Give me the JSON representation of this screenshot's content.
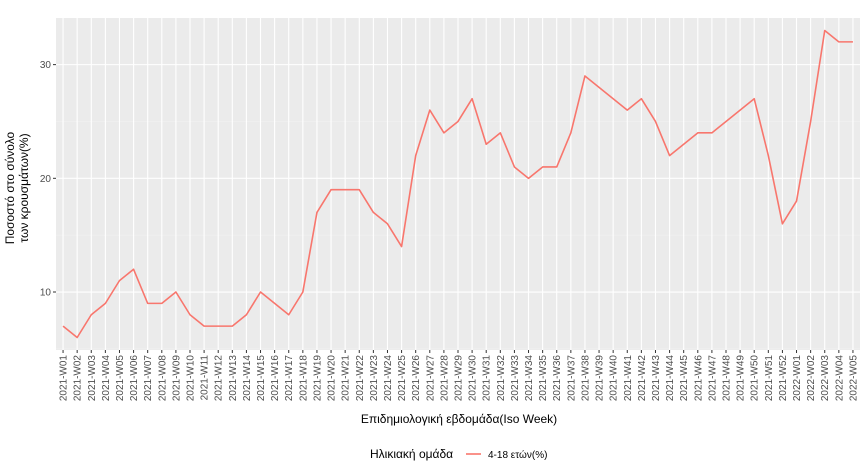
{
  "chart_data": {
    "type": "line",
    "title": "",
    "xlabel": "Επιδημιολογική εβδομάδα(Iso Week)",
    "ylabel_lines": [
      "Ποσοστό στο σύνολο",
      "των κρουσμάτων(%)"
    ],
    "ylim": [
      4.9,
      34.1
    ],
    "yticks": [
      10,
      20,
      30
    ],
    "grid": true,
    "legend_position": "bottom",
    "legend_title": "Ηλικιακή ομάδα",
    "colors": {
      "series": "#f8766d",
      "panel": "#ebebeb",
      "grid_major": "#ffffff",
      "grid_minor": "#f2f2f2"
    },
    "categories": [
      "2021-W01",
      "2021-W02",
      "2021-W03",
      "2021-W04",
      "2021-W05",
      "2021-W06",
      "2021-W07",
      "2021-W08",
      "2021-W09",
      "2021-W10",
      "2021-W11",
      "2021-W12",
      "2021-W13",
      "2021-W14",
      "2021-W15",
      "2021-W16",
      "2021-W17",
      "2021-W18",
      "2021-W19",
      "2021-W20",
      "2021-W21",
      "2021-W22",
      "2021-W23",
      "2021-W24",
      "2021-W25",
      "2021-W26",
      "2021-W27",
      "2021-W28",
      "2021-W29",
      "2021-W30",
      "2021-W31",
      "2021-W32",
      "2021-W33",
      "2021-W34",
      "2021-W35",
      "2021-W36",
      "2021-W37",
      "2021-W38",
      "2021-W39",
      "2021-W40",
      "2021-W41",
      "2021-W42",
      "2021-W43",
      "2021-W44",
      "2021-W45",
      "2021-W46",
      "2021-W47",
      "2021-W48",
      "2021-W49",
      "2021-W50",
      "2021-W51",
      "2021-W52",
      "2022-W01",
      "2022-W02",
      "2022-W03",
      "2022-W04",
      "2022-W05"
    ],
    "series": [
      {
        "name": "4-18 ετών(%)",
        "values": [
          7,
          6,
          8,
          9,
          11,
          12,
          9,
          9,
          10,
          8,
          7,
          7,
          7,
          8,
          10,
          9,
          8,
          10,
          17,
          19,
          19,
          19,
          17,
          16,
          14,
          22,
          26,
          24,
          25,
          27,
          23,
          24,
          21,
          20,
          21,
          21,
          24,
          29,
          28,
          27,
          26,
          27,
          25,
          22,
          23,
          24,
          24,
          25,
          26,
          27,
          22,
          16,
          18,
          25,
          33,
          32,
          32
        ]
      }
    ]
  }
}
